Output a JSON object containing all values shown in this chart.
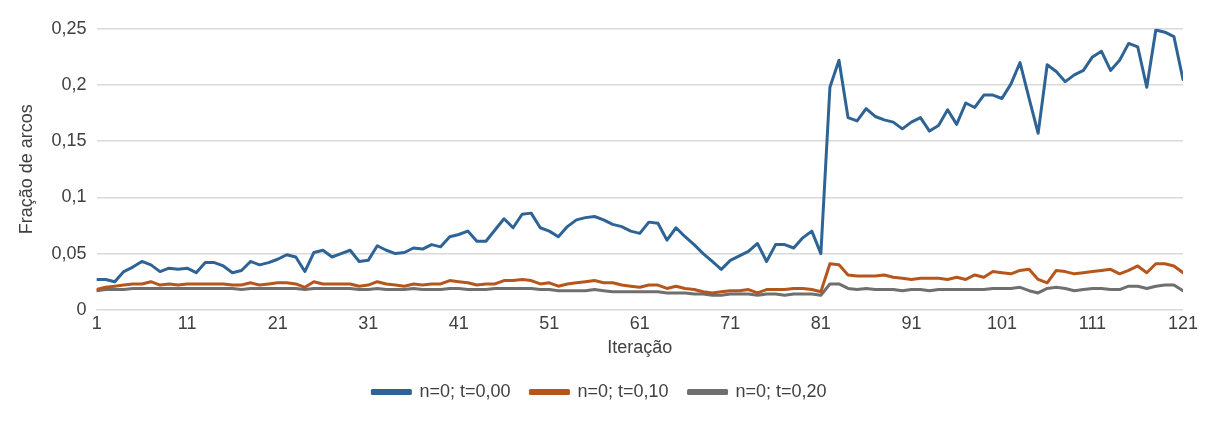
{
  "chart_data": {
    "type": "line",
    "xlabel": "Iteração",
    "ylabel": "Fração de arcos",
    "x": [
      1,
      2,
      3,
      4,
      5,
      6,
      7,
      8,
      9,
      10,
      11,
      12,
      13,
      14,
      15,
      16,
      17,
      18,
      19,
      20,
      21,
      22,
      23,
      24,
      25,
      26,
      27,
      28,
      29,
      30,
      31,
      32,
      33,
      34,
      35,
      36,
      37,
      38,
      39,
      40,
      41,
      42,
      43,
      44,
      45,
      46,
      47,
      48,
      49,
      50,
      51,
      52,
      53,
      54,
      55,
      56,
      57,
      58,
      59,
      60,
      61,
      62,
      63,
      64,
      65,
      66,
      67,
      68,
      69,
      70,
      71,
      72,
      73,
      74,
      75,
      76,
      77,
      78,
      79,
      80,
      81,
      82,
      83,
      84,
      85,
      86,
      87,
      88,
      89,
      90,
      91,
      92,
      93,
      94,
      95,
      96,
      97,
      98,
      99,
      100,
      101,
      102,
      103,
      104,
      105,
      106,
      107,
      108,
      109,
      110,
      111,
      112,
      113,
      114,
      115,
      116,
      117,
      118,
      119,
      120,
      121
    ],
    "series": [
      {
        "name": "n=0; t=0,00",
        "color": "#2e6495",
        "values": [
          0.027,
          0.027,
          0.025,
          0.034,
          0.038,
          0.043,
          0.04,
          0.034,
          0.037,
          0.036,
          0.037,
          0.033,
          0.042,
          0.042,
          0.039,
          0.033,
          0.035,
          0.043,
          0.04,
          0.042,
          0.045,
          0.049,
          0.047,
          0.034,
          0.051,
          0.053,
          0.047,
          0.05,
          0.053,
          0.043,
          0.044,
          0.057,
          0.053,
          0.05,
          0.051,
          0.055,
          0.054,
          0.058,
          0.056,
          0.065,
          0.067,
          0.07,
          0.061,
          0.061,
          0.071,
          0.081,
          0.073,
          0.085,
          0.086,
          0.073,
          0.07,
          0.065,
          0.074,
          0.08,
          0.082,
          0.083,
          0.08,
          0.076,
          0.074,
          0.07,
          0.068,
          0.078,
          0.077,
          0.062,
          0.073,
          0.065,
          0.058,
          0.05,
          0.043,
          0.036,
          0.044,
          0.048,
          0.052,
          0.059,
          0.043,
          0.058,
          0.058,
          0.055,
          0.064,
          0.07,
          0.05,
          0.198,
          0.222,
          0.171,
          0.168,
          0.179,
          0.172,
          0.169,
          0.167,
          0.161,
          0.167,
          0.171,
          0.159,
          0.164,
          0.178,
          0.165,
          0.184,
          0.18,
          0.191,
          0.191,
          0.188,
          0.201,
          0.22,
          0.188,
          0.157,
          0.218,
          0.212,
          0.203,
          0.209,
          0.213,
          0.225,
          0.23,
          0.213,
          0.222,
          0.237,
          0.234,
          0.198,
          0.249,
          0.247,
          0.243,
          0.205
        ]
      },
      {
        "name": "n=0; t=0,10",
        "color": "#b5561c",
        "values": [
          0.018,
          0.02,
          0.021,
          0.022,
          0.023,
          0.023,
          0.025,
          0.022,
          0.023,
          0.022,
          0.023,
          0.023,
          0.023,
          0.023,
          0.023,
          0.022,
          0.022,
          0.024,
          0.022,
          0.023,
          0.024,
          0.024,
          0.023,
          0.02,
          0.025,
          0.023,
          0.023,
          0.023,
          0.023,
          0.021,
          0.022,
          0.025,
          0.023,
          0.022,
          0.021,
          0.023,
          0.022,
          0.023,
          0.023,
          0.026,
          0.025,
          0.024,
          0.022,
          0.023,
          0.023,
          0.026,
          0.026,
          0.027,
          0.026,
          0.023,
          0.024,
          0.021,
          0.023,
          0.024,
          0.025,
          0.026,
          0.024,
          0.024,
          0.022,
          0.021,
          0.02,
          0.022,
          0.022,
          0.019,
          0.021,
          0.019,
          0.018,
          0.016,
          0.015,
          0.016,
          0.017,
          0.017,
          0.018,
          0.015,
          0.018,
          0.018,
          0.018,
          0.019,
          0.019,
          0.018,
          0.016,
          0.041,
          0.04,
          0.031,
          0.03,
          0.03,
          0.03,
          0.031,
          0.029,
          0.028,
          0.027,
          0.028,
          0.028,
          0.028,
          0.027,
          0.029,
          0.027,
          0.031,
          0.029,
          0.034,
          0.033,
          0.032,
          0.035,
          0.036,
          0.027,
          0.024,
          0.035,
          0.034,
          0.032,
          0.033,
          0.034,
          0.035,
          0.036,
          0.032,
          0.035,
          0.039,
          0.033,
          0.041,
          0.041,
          0.039,
          0.033
        ]
      },
      {
        "name": "n=0; t=0,20",
        "color": "#6f6f6f",
        "values": [
          0.017,
          0.018,
          0.018,
          0.018,
          0.019,
          0.019,
          0.019,
          0.019,
          0.019,
          0.019,
          0.019,
          0.019,
          0.019,
          0.019,
          0.019,
          0.019,
          0.018,
          0.019,
          0.019,
          0.019,
          0.019,
          0.019,
          0.019,
          0.018,
          0.019,
          0.019,
          0.019,
          0.019,
          0.019,
          0.018,
          0.018,
          0.019,
          0.018,
          0.018,
          0.018,
          0.019,
          0.018,
          0.018,
          0.018,
          0.019,
          0.019,
          0.018,
          0.018,
          0.018,
          0.019,
          0.019,
          0.019,
          0.019,
          0.019,
          0.018,
          0.018,
          0.017,
          0.017,
          0.017,
          0.017,
          0.018,
          0.017,
          0.016,
          0.016,
          0.016,
          0.016,
          0.016,
          0.016,
          0.015,
          0.015,
          0.015,
          0.014,
          0.014,
          0.013,
          0.013,
          0.014,
          0.014,
          0.014,
          0.013,
          0.014,
          0.014,
          0.013,
          0.014,
          0.014,
          0.014,
          0.013,
          0.023,
          0.023,
          0.019,
          0.018,
          0.019,
          0.018,
          0.018,
          0.018,
          0.017,
          0.018,
          0.018,
          0.017,
          0.018,
          0.018,
          0.018,
          0.018,
          0.018,
          0.018,
          0.019,
          0.019,
          0.019,
          0.02,
          0.017,
          0.015,
          0.019,
          0.02,
          0.019,
          0.017,
          0.018,
          0.019,
          0.019,
          0.018,
          0.018,
          0.021,
          0.021,
          0.019,
          0.021,
          0.022,
          0.022,
          0.017
        ]
      }
    ],
    "xlim": [
      1,
      121
    ],
    "xticks": [
      1,
      11,
      21,
      31,
      41,
      51,
      61,
      71,
      81,
      91,
      101,
      111,
      121
    ],
    "ylim": [
      0,
      0.25
    ],
    "yticks": [
      0,
      {
        "value": 0.05,
        "label": "0,05"
      },
      {
        "value": 0.1,
        "label": "0,1"
      },
      {
        "value": 0.15,
        "label": "0,15"
      },
      {
        "value": 0.2,
        "label": "0,2"
      },
      {
        "value": 0.25,
        "label": "0,25"
      }
    ],
    "grid": "y",
    "legend": "bottom",
    "marker": "none",
    "line_style": "solid"
  }
}
